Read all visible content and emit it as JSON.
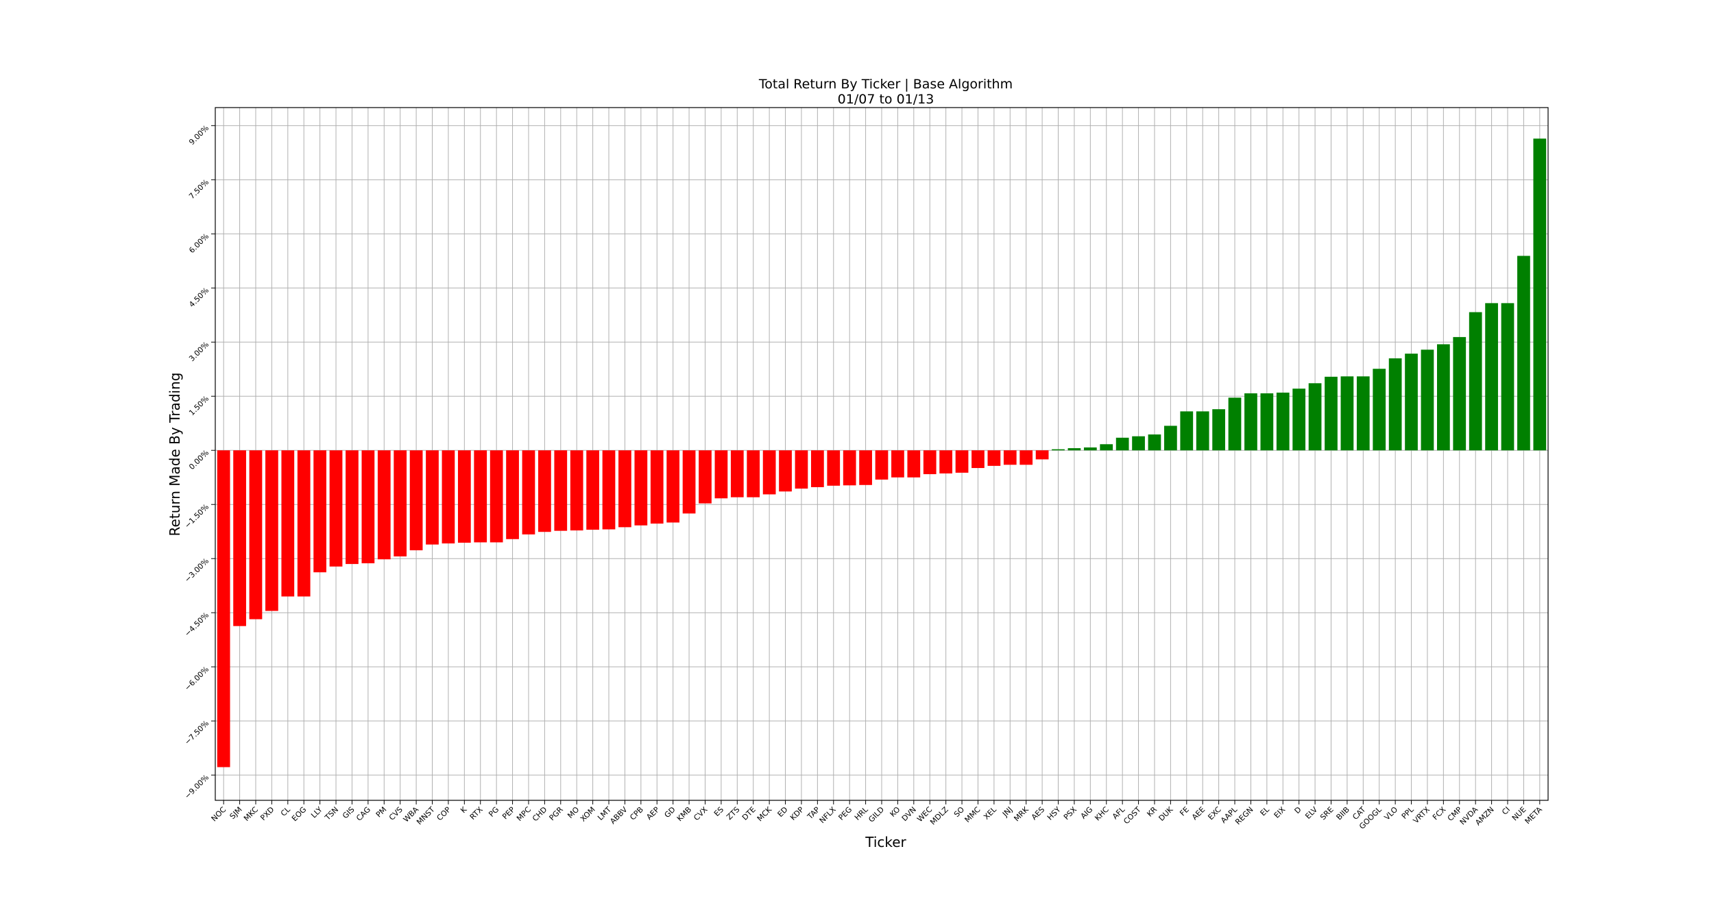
{
  "chart_data": {
    "type": "bar",
    "title": "Total Return By Ticker | Base Algorithm",
    "subtitle": "01/07 to 01/13",
    "xlabel": "Ticker",
    "ylabel": "Return Made By Trading",
    "ylim": [
      -0.097,
      0.095
    ],
    "y_ticks": [
      -0.09,
      -0.075,
      -0.06,
      -0.045,
      -0.03,
      -0.015,
      0,
      0.015,
      0.03,
      0.045,
      0.06,
      0.075,
      0.09
    ],
    "y_tick_labels": [
      "−9.00%",
      "−7.50%",
      "−6.00%",
      "−4.50%",
      "−3.00%",
      "−1.50%",
      "0.00%",
      "1.50%",
      "3.00%",
      "4.50%",
      "6.00%",
      "7.50%",
      "9.00%"
    ],
    "grid": true,
    "colors": {
      "negative": "#ff0000",
      "positive": "#008000"
    },
    "categories": [
      "NOC",
      "SJM",
      "MKC",
      "PXD",
      "CL",
      "EOG",
      "LLY",
      "TSN",
      "GIS",
      "CAG",
      "PM",
      "CVS",
      "WBA",
      "MNST",
      "COP",
      "K",
      "RTX",
      "PG",
      "PEP",
      "MPC",
      "CHD",
      "PGR",
      "MO",
      "XOM",
      "LMT",
      "ABBV",
      "CPB",
      "AEP",
      "GD",
      "KMB",
      "CVX",
      "ES",
      "ZTS",
      "DTE",
      "MCK",
      "ED",
      "KDP",
      "TAP",
      "NFLX",
      "PEG",
      "HRL",
      "GILD",
      "KO",
      "DVN",
      "WEC",
      "MDLZ",
      "SO",
      "MMC",
      "XEL",
      "JNJ",
      "MRK",
      "AES",
      "HSY",
      "PSX",
      "AIG",
      "KHC",
      "AFL",
      "COST",
      "KR",
      "DUK",
      "FE",
      "AEE",
      "EXC",
      "AAPL",
      "REGN",
      "EL",
      "EIX",
      "D",
      "ELV",
      "SRE",
      "BIIB",
      "CAT",
      "GOOGL",
      "VLO",
      "PPL",
      "VRTX",
      "FCX",
      "CMP",
      "NVDA",
      "AMZN",
      "CI",
      "NUE",
      "META"
    ],
    "values": [
      -0.0878,
      -0.0487,
      -0.0468,
      -0.0445,
      -0.0405,
      -0.0405,
      -0.0338,
      -0.0322,
      -0.0315,
      -0.0313,
      -0.0302,
      -0.0294,
      -0.0277,
      -0.0261,
      -0.0258,
      -0.0256,
      -0.0255,
      -0.0255,
      -0.0246,
      -0.0233,
      -0.0226,
      -0.0223,
      -0.0222,
      -0.022,
      -0.0219,
      -0.0213,
      -0.0208,
      -0.0203,
      -0.02,
      -0.0175,
      -0.0147,
      -0.0133,
      -0.013,
      -0.013,
      -0.0122,
      -0.0114,
      -0.0106,
      -0.0102,
      -0.0098,
      -0.0097,
      -0.0096,
      -0.0081,
      -0.0075,
      -0.0075,
      -0.0066,
      -0.0064,
      -0.0062,
      -0.0049,
      -0.0043,
      -0.004,
      -0.004,
      -0.0025,
      0.0003,
      0.0006,
      0.0008,
      0.0017,
      0.0035,
      0.0039,
      0.0044,
      0.0068,
      0.0108,
      0.0108,
      0.0114,
      0.0146,
      0.0158,
      0.0158,
      0.016,
      0.0171,
      0.0186,
      0.0204,
      0.0205,
      0.0205,
      0.0226,
      0.0255,
      0.0268,
      0.0279,
      0.0294,
      0.0314,
      0.0383,
      0.0408,
      0.0408,
      0.0539,
      0.0864
    ]
  }
}
